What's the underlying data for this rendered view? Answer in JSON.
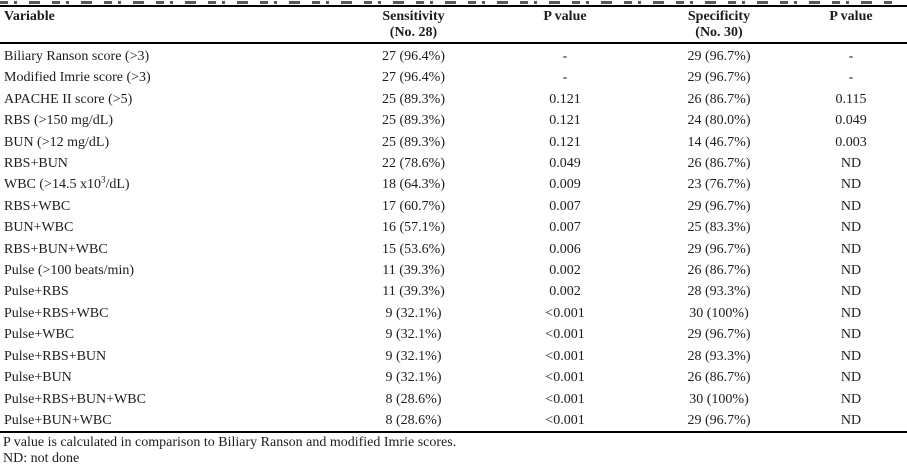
{
  "colors": {
    "text": "#1c1c1c",
    "rule": "#000000",
    "background": "#ffffff"
  },
  "table": {
    "columns": [
      {
        "key": "variable",
        "label": "Variable",
        "sub": ""
      },
      {
        "key": "sensitivity",
        "label": "Sensitivity",
        "sub": "(No. 28)"
      },
      {
        "key": "p1",
        "label": "P value",
        "sub": ""
      },
      {
        "key": "specificity",
        "label": "Specificity",
        "sub": "(No. 30)"
      },
      {
        "key": "p2",
        "label": "P value",
        "sub": ""
      }
    ],
    "rows": [
      {
        "variable": "Biliary Ranson score (>3)",
        "sensitivity": "27 (96.4%)",
        "p1": "-",
        "specificity": "29 (96.7%)",
        "p2": "-"
      },
      {
        "variable": "Modified Imrie score (>3)",
        "sensitivity": "27 (96.4%)",
        "p1": "-",
        "specificity": "29 (96.7%)",
        "p2": "-"
      },
      {
        "variable": "APACHE II score (>5)",
        "sensitivity": "25 (89.3%)",
        "p1": "0.121",
        "specificity": "26 (86.7%)",
        "p2": "0.115"
      },
      {
        "variable": "RBS (>150 mg/dL)",
        "sensitivity": "25 (89.3%)",
        "p1": "0.121",
        "specificity": "24 (80.0%)",
        "p2": "0.049"
      },
      {
        "variable": "BUN (>12 mg/dL)",
        "sensitivity": "25 (89.3%)",
        "p1": "0.121",
        "specificity": "14 (46.7%)",
        "p2": "0.003"
      },
      {
        "variable": "RBS+BUN",
        "sensitivity": "22 (78.6%)",
        "p1": "0.049",
        "specificity": "26 (86.7%)",
        "p2": "ND"
      },
      {
        "variable_parts": [
          {
            "text": "WBC (>14.5 x10"
          },
          {
            "text": "3",
            "sup": true
          },
          {
            "text": "/dL)"
          }
        ],
        "sensitivity": "18 (64.3%)",
        "p1": "0.009",
        "specificity": "23 (76.7%)",
        "p2": "ND"
      },
      {
        "variable": "RBS+WBC",
        "sensitivity": "17 (60.7%)",
        "p1": "0.007",
        "specificity": "29 (96.7%)",
        "p2": "ND"
      },
      {
        "variable": "BUN+WBC",
        "sensitivity": "16 (57.1%)",
        "p1": "0.007",
        "specificity": "25 (83.3%)",
        "p2": "ND"
      },
      {
        "variable": "RBS+BUN+WBC",
        "sensitivity": "15 (53.6%)",
        "p1": "0.006",
        "specificity": "29 (96.7%)",
        "p2": "ND"
      },
      {
        "variable": "Pulse (>100 beats/min)",
        "sensitivity": "11 (39.3%)",
        "p1": "0.002",
        "specificity": "26 (86.7%)",
        "p2": "ND"
      },
      {
        "variable": "Pulse+RBS",
        "sensitivity": "11 (39.3%)",
        "p1": "0.002",
        "specificity": "28 (93.3%)",
        "p2": "ND"
      },
      {
        "variable": "Pulse+RBS+WBC",
        "sensitivity": "9 (32.1%)",
        "p1": "<0.001",
        "specificity": "30 (100%)",
        "p2": "ND"
      },
      {
        "variable": "Pulse+WBC",
        "sensitivity": "9 (32.1%)",
        "p1": "<0.001",
        "specificity": "29 (96.7%)",
        "p2": "ND"
      },
      {
        "variable": "Pulse+RBS+BUN",
        "sensitivity": "9 (32.1%)",
        "p1": "<0.001",
        "specificity": "28 (93.3%)",
        "p2": "ND"
      },
      {
        "variable": "Pulse+BUN",
        "sensitivity": "9 (32.1%)",
        "p1": "<0.001",
        "specificity": "26 (86.7%)",
        "p2": "ND"
      },
      {
        "variable": "Pulse+RBS+BUN+WBC",
        "sensitivity": "8 (28.6%)",
        "p1": "<0.001",
        "specificity": "30 (100%)",
        "p2": "ND"
      },
      {
        "variable": "Pulse+BUN+WBC",
        "sensitivity": "8 (28.6%)",
        "p1": "<0.001",
        "specificity": "29 (96.7%)",
        "p2": "ND"
      }
    ],
    "footnotes": [
      "P value is calculated in comparison to Biliary Ranson and modified Imrie scores.",
      "ND: not done"
    ]
  }
}
